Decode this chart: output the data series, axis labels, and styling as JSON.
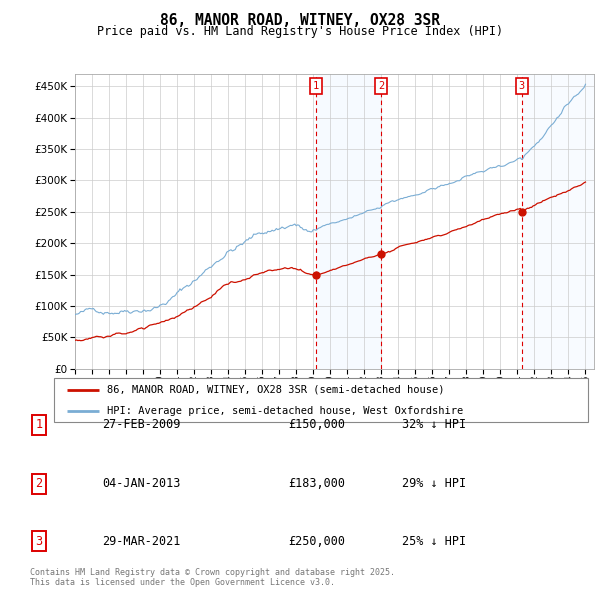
{
  "title": "86, MANOR ROAD, WITNEY, OX28 3SR",
  "subtitle": "Price paid vs. HM Land Registry's House Price Index (HPI)",
  "ylim": [
    0,
    470000
  ],
  "yticks": [
    0,
    50000,
    100000,
    150000,
    200000,
    250000,
    300000,
    350000,
    400000,
    450000
  ],
  "hpi_color": "#7aadd4",
  "paid_color": "#cc1100",
  "vline_color": "#dd0000",
  "bg_shade_color": "#ddeeff",
  "transaction_labels": [
    {
      "num": 1,
      "date": "27-FEB-2009",
      "price": "£150,000",
      "pct": "32% ↓ HPI",
      "year": 2009.152
    },
    {
      "num": 2,
      "date": "04-JAN-2013",
      "price": "£183,000",
      "pct": "29% ↓ HPI",
      "year": 2013.008
    },
    {
      "num": 3,
      "date": "29-MAR-2021",
      "price": "£250,000",
      "pct": "25% ↓ HPI",
      "year": 2021.242
    }
  ],
  "legend_paid": "86, MANOR ROAD, WITNEY, OX28 3SR (semi-detached house)",
  "legend_hpi": "HPI: Average price, semi-detached house, West Oxfordshire",
  "footer": "Contains HM Land Registry data © Crown copyright and database right 2025.\nThis data is licensed under the Open Government Licence v3.0.",
  "x_start_year": 1995,
  "x_end_year": 2025
}
